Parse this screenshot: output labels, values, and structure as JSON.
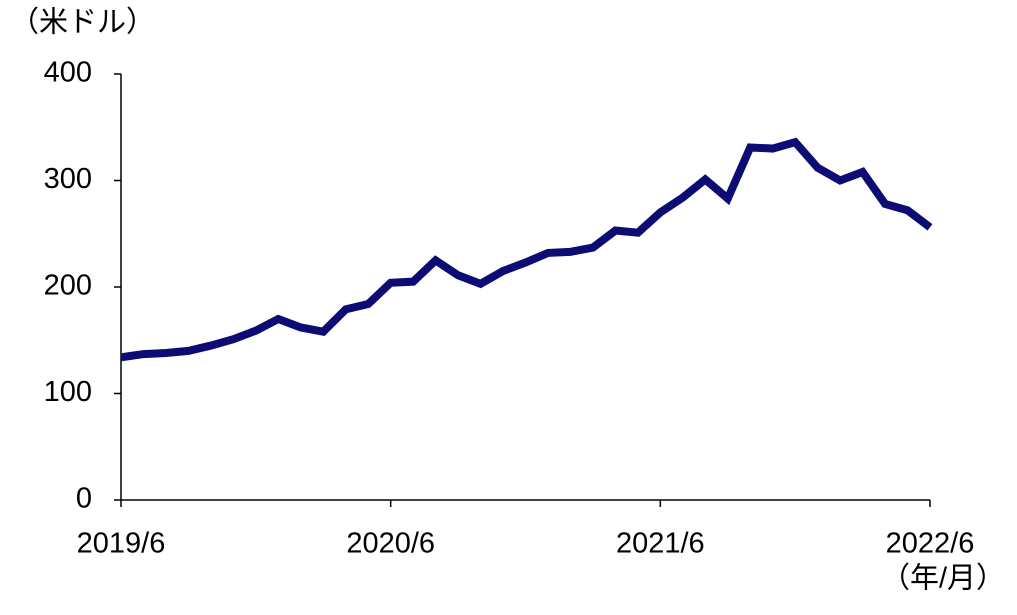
{
  "chart_data": {
    "type": "line",
    "y_unit": "（米ドル）",
    "x_unit": "（年/月）",
    "categories": [
      "2019/6",
      null,
      null,
      null,
      null,
      null,
      null,
      null,
      null,
      null,
      null,
      null,
      "2020/6",
      null,
      null,
      null,
      null,
      null,
      null,
      null,
      null,
      null,
      null,
      null,
      "2021/6",
      null,
      null,
      null,
      null,
      null,
      null,
      null,
      null,
      null,
      null,
      null,
      "2022/6"
    ],
    "values": [
      134,
      137,
      138,
      140,
      145,
      151,
      159,
      170,
      162,
      158,
      179,
      184,
      204,
      205,
      225,
      211,
      203,
      215,
      223,
      232,
      233,
      237,
      253,
      251,
      270,
      284,
      301,
      283,
      331,
      330,
      336,
      312,
      300,
      308,
      278,
      272,
      256
    ],
    "color": "#0c0c74",
    "ylim": [
      0,
      400
    ],
    "yticks": [
      0,
      100,
      200,
      300,
      400
    ]
  }
}
